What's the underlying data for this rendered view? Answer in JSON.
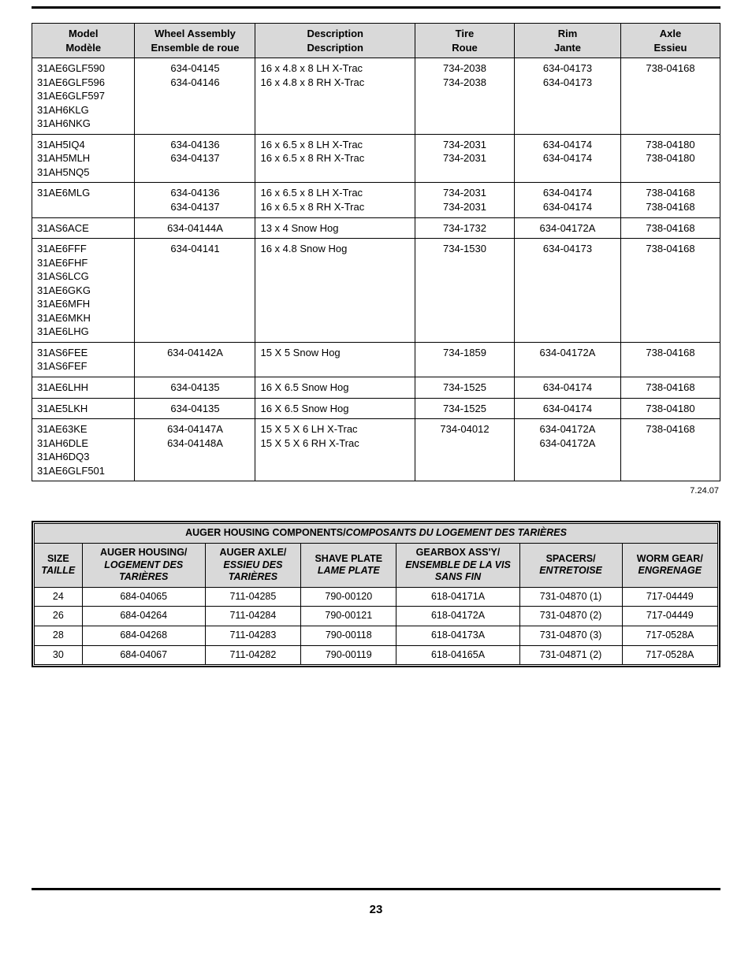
{
  "wheel_table": {
    "headers": {
      "model": "Model\nModèle",
      "assembly": "Wheel Assembly\nEnsemble de roue",
      "description": "Description\nDescription",
      "tire": "Tire\nRoue",
      "rim": "Rim\nJante",
      "axle": "Axle\nEssieu"
    },
    "rows": [
      {
        "model": "31AE6GLF590\n31AE6GLF596\n31AE6GLF597\n31AH6KLG\n31AH6NKG",
        "assembly": "634-04145\n634-04146",
        "description": "16 x 4.8 x 8 LH X-Trac\n16 x 4.8 x 8 RH X-Trac",
        "tire": "734-2038\n734-2038",
        "rim": "634-04173\n634-04173",
        "axle": "738-04168"
      },
      {
        "model": "31AH5IQ4\n31AH5MLH\n31AH5NQ5",
        "assembly": "634-04136\n634-04137",
        "description": "16 x 6.5 x 8 LH X-Trac\n16 x 6.5 x 8 RH X-Trac",
        "tire": "734-2031\n734-2031",
        "rim": "634-04174\n634-04174",
        "axle": "738-04180\n738-04180"
      },
      {
        "model": "31AE6MLG",
        "assembly": "634-04136\n634-04137",
        "description": "16 x 6.5 x 8 LH X-Trac\n16 x 6.5 x 8 RH X-Trac",
        "tire": "734-2031\n734-2031",
        "rim": "634-04174\n634-04174",
        "axle": "738-04168\n738-04168"
      },
      {
        "model": "31AS6ACE",
        "assembly": "634-04144A",
        "description": "13 x 4 Snow Hog",
        "tire": "734-1732",
        "rim": "634-04172A",
        "axle": "738-04168"
      },
      {
        "model": "31AE6FFF\n31AE6FHF\n31AS6LCG\n31AE6GKG\n31AE6MFH\n31AE6MKH\n31AE6LHG",
        "assembly": "634-04141",
        "description": "16 x 4.8 Snow Hog",
        "tire": "734-1530",
        "rim": "634-04173",
        "axle": "738-04168"
      },
      {
        "model": "31AS6FEE\n31AS6FEF",
        "assembly": "634-04142A",
        "description": "15 X 5 Snow Hog",
        "tire": "734-1859",
        "rim": "634-04172A",
        "axle": "738-04168"
      },
      {
        "model": "31AE6LHH",
        "assembly": "634-04135",
        "description": "16 X 6.5 Snow Hog",
        "tire": "734-1525",
        "rim": "634-04174",
        "axle": "738-04168"
      },
      {
        "model": "31AE5LKH",
        "assembly": "634-04135",
        "description": "16 X 6.5 Snow Hog",
        "tire": "734-1525",
        "rim": "634-04174",
        "axle": "738-04180"
      },
      {
        "model": "31AE63KE\n31AH6DLE\n31AH6DQ3\n31AE6GLF501",
        "assembly": "634-04147A\n634-04148A",
        "description": "15 X 5 X 6 LH X-Trac\n15 X 5 X 6 RH X-Trac",
        "tire": "734-04012",
        "rim": "634-04172A\n634-04172A",
        "axle": "738-04168"
      }
    ]
  },
  "date_footer": "7.24.07",
  "auger_table": {
    "title_en": "AUGER HOUSING COMPONENTS",
    "title_fr": "COMPOSANTS DU LOGEMENT DES TARIÈRES",
    "headers": {
      "size": {
        "en": "SIZE",
        "fr": "TAILLE"
      },
      "housing": {
        "en": "AUGER HOUSING/",
        "fr": "LOGEMENT DES TARIÈRES"
      },
      "axle": {
        "en": "AUGER AXLE/",
        "fr": "ESSIEU DES TARIÈRES"
      },
      "shave": {
        "en": "SHAVE PLATE",
        "fr": "LAME PLATE"
      },
      "gearbox": {
        "en": "GEARBOX ASS'Y/",
        "fr": "ENSEMBLE DE LA VIS SANS FIN"
      },
      "spacers": {
        "en": "SPACERS/",
        "fr": "ENTRETOISE"
      },
      "worm": {
        "en": "WORM GEAR/",
        "fr": "ENGRENAGE"
      }
    },
    "rows": [
      {
        "size": "24",
        "housing": "684-04065",
        "axle": "711-04285",
        "shave": "790-00120",
        "gearbox": "618-04171A",
        "spacers": "731-04870 (1)",
        "worm": "717-04449"
      },
      {
        "size": "26",
        "housing": "684-04264",
        "axle": "711-04284",
        "shave": "790-00121",
        "gearbox": "618-04172A",
        "spacers": "731-04870 (2)",
        "worm": "717-04449"
      },
      {
        "size": "28",
        "housing": "684-04268",
        "axle": "711-04283",
        "shave": "790-00118",
        "gearbox": "618-04173A",
        "spacers": "731-04870 (3)",
        "worm": "717-0528A"
      },
      {
        "size": "30",
        "housing": "684-04067",
        "axle": "711-04282",
        "shave": "790-00119",
        "gearbox": "618-04165A",
        "spacers": "731-04871 (2)",
        "worm": "717-0528A"
      }
    ]
  },
  "page_number": "23"
}
